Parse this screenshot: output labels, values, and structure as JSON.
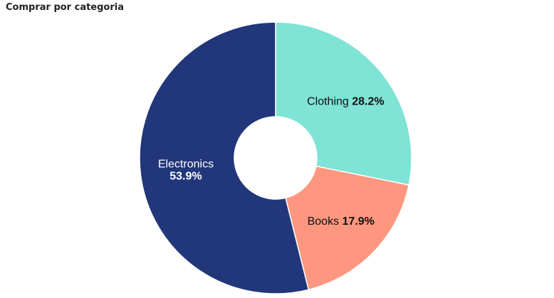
{
  "chart_data": {
    "type": "pie",
    "title": "Comprar por categoria",
    "hole": true,
    "categories": [
      "Clothing",
      "Books",
      "Electronics"
    ],
    "values": [
      28.2,
      17.9,
      53.9
    ],
    "percent_labels": [
      "28.2%",
      "17.9%",
      "53.9%"
    ],
    "colors": [
      "#7fe3d5",
      "#ff9780",
      "#22377a"
    ],
    "label_colors": [
      "#111111",
      "#111111",
      "#ffffff"
    ],
    "label_layout": [
      "inline",
      "inline",
      "stacked"
    ],
    "legend": "none"
  }
}
